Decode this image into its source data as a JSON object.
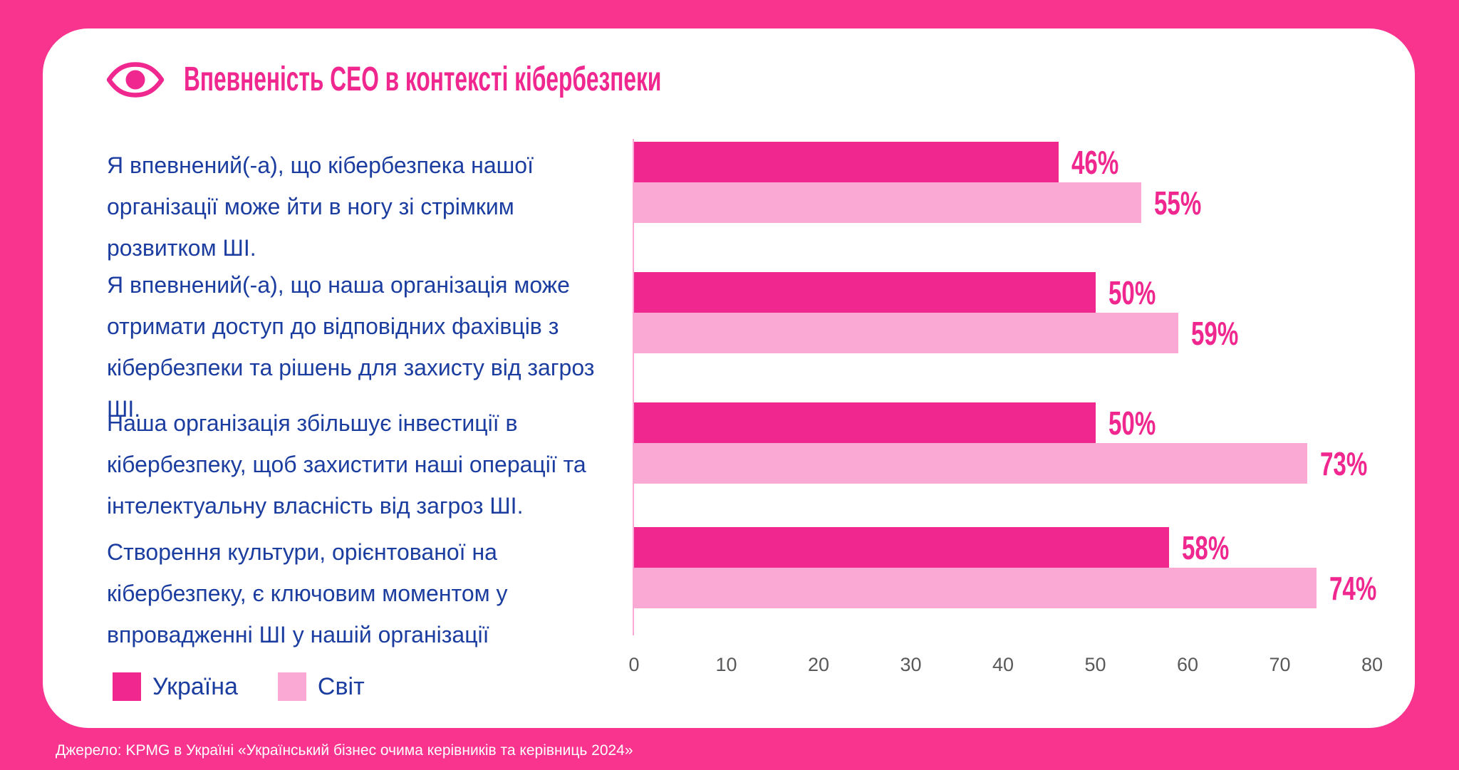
{
  "header": {
    "title": "Впевненість CEO в контексті кібербезпеки"
  },
  "chart_data": {
    "type": "bar",
    "orientation": "horizontal",
    "title": "Впевненість CEO в контексті кібербезпеки",
    "categories": [
      "Я впевнений(-а), що кібербезпека нашої організації може йти в ногу зі стрімким розвитком ШІ.",
      "Я впевнений(-а), що наша організація може отримати доступ до відповідних фахівців з кібербезпеки та рішень для захисту від загроз ШІ.",
      "Наша організація збільшує інвестиції в кібербезпеку, щоб захистити наші операції та інтелектуальну власність від загроз ШІ.",
      "Створення культури, орієнтованої на кібербезпеку, є ключовим моментом у впровадженні ШІ у нашій організації"
    ],
    "series": [
      {
        "name": "Україна",
        "color": "#F0278F",
        "values": [
          46,
          50,
          50,
          58
        ]
      },
      {
        "name": "Світ",
        "color": "#F9A9D4",
        "values": [
          55,
          59,
          73,
          74
        ]
      }
    ],
    "value_label_suffix": "%",
    "xlim": [
      0,
      80
    ],
    "x_ticks": [
      0,
      10,
      20,
      30,
      40,
      50,
      60,
      70,
      80
    ],
    "grid": false,
    "legend_position": "bottom-left"
  },
  "legend": {
    "items": [
      {
        "label": "Україна",
        "color": "#F0278F"
      },
      {
        "label": "Світ",
        "color": "#F9A9D4"
      }
    ]
  },
  "footer": {
    "source": "Джерело: KPMG в Україні «Український бізнес очима керівників та керівниць 2024»"
  },
  "colors": {
    "background": "#F9348F",
    "accent": "#F0278F",
    "accent_light": "#F9A9D4",
    "text_blue": "#1C3DA0",
    "tick_gray": "#58595B",
    "card": "#FFFFFF"
  }
}
